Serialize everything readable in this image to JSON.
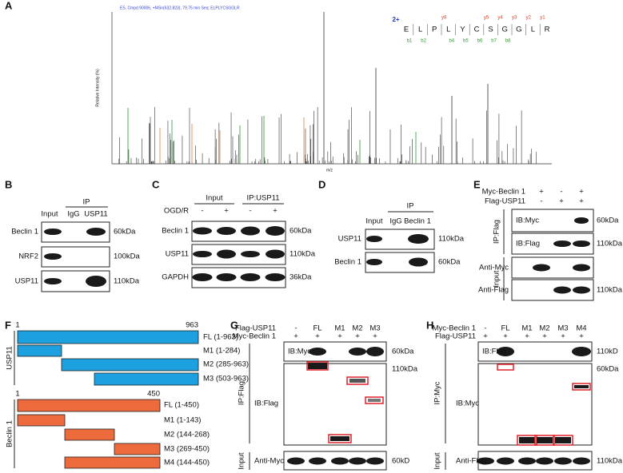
{
  "panel_a": {
    "label": "A",
    "header": "ES, Cmpd 90006, +MSn(632.823), 79.75 min   Seq: ELPLYCSGGLR",
    "y_axis": "Relative Intensity (%)",
    "x_axis": "m/z",
    "charge": "2+",
    "sequence": [
      "E",
      "L",
      "P",
      "L",
      "Y",
      "C",
      "S",
      "G",
      "G",
      "L",
      "R"
    ],
    "y_ions": [
      "y8",
      "y5",
      "y4",
      "y3",
      "y2",
      "y1"
    ],
    "b_ions": [
      "b1",
      "b2",
      "b4",
      "b5",
      "b6",
      "b7",
      "b8"
    ]
  },
  "panel_b": {
    "label": "B",
    "ip": "IP",
    "lanes": [
      "Input",
      "IgG",
      "USP11"
    ],
    "rows": [
      "Beclin 1",
      "NRF2",
      "USP11"
    ],
    "sizes": [
      "60kDa",
      "100kDa",
      "110kDa"
    ]
  },
  "panel_c": {
    "label": "C",
    "groups": [
      "Input",
      "IP:USP11"
    ],
    "treatment": "OGD/R",
    "signs": [
      "-",
      "+",
      "-",
      "+"
    ],
    "rows": [
      "Beclin 1",
      "USP11",
      "GAPDH"
    ],
    "sizes": [
      "60kDa",
      "110kDa",
      "36kDa"
    ]
  },
  "panel_d": {
    "label": "D",
    "ip": "IP",
    "lanes": [
      "Input",
      "IgG",
      "Beclin 1"
    ],
    "rows": [
      "USP11",
      "Beclin 1"
    ],
    "sizes": [
      "110kDa",
      "60kDa"
    ]
  },
  "panel_e": {
    "label": "E",
    "conditions": [
      {
        "name": "Myc-Beclin 1",
        "signs": [
          "+",
          "-",
          "+"
        ]
      },
      {
        "name": "Flag-USP11",
        "signs": [
          "-",
          "+",
          "+"
        ]
      }
    ],
    "ip": "IP:Flag",
    "ip_rows": [
      "IB:Myc",
      "IB:Flag"
    ],
    "ip_sizes": [
      "60kDa",
      "110kDa"
    ],
    "input": "Input",
    "input_rows": [
      "Anti-Myc",
      "Anti-Flag"
    ],
    "input_size": "110kDa"
  },
  "panel_f": {
    "label": "F",
    "usp11": {
      "name": "USP11",
      "start": "1",
      "end": "963",
      "constructs": [
        "FL (1-963)",
        "M1 (1-284)",
        "M2 (285-963)",
        "M3 (503-963)"
      ]
    },
    "beclin": {
      "name": "Beclin 1",
      "start": "1",
      "end": "450",
      "constructs": [
        "FL (1-450)",
        "M1 (1-143)",
        "M2 (144-268)",
        "M3 (269-450)",
        "M4 (144-450)"
      ]
    }
  },
  "panel_g": {
    "label": "G",
    "conditions": [
      {
        "name": "Flag-USP11",
        "signs": [
          "-",
          "FL",
          "M1",
          "M2",
          "M3"
        ]
      },
      {
        "name": "Myc-Beclin 1",
        "signs": [
          "+",
          "+",
          "+",
          "+",
          "+"
        ]
      }
    ],
    "ip": "IP:Flag",
    "ip_rows": [
      "IB:Myc",
      "IB:Flag"
    ],
    "ip_sizes": [
      "60kDa",
      "110kDa"
    ],
    "input": "Input",
    "input_row": "Anti-Myc",
    "input_size": "60kD"
  },
  "panel_h": {
    "label": "H",
    "conditions": [
      {
        "name": "Myc-Beclin 1",
        "signs": [
          "-",
          "FL",
          "M1",
          "M2",
          "M3",
          "M4"
        ]
      },
      {
        "name": "Flag-USP11",
        "signs": [
          "+",
          "+",
          "+",
          "+",
          "+",
          "+"
        ]
      }
    ],
    "ip": "IP:Myc",
    "ip_rows": [
      "IB:Flag",
      "IB:Myc"
    ],
    "ip_sizes": [
      "110kD",
      "60kDa"
    ],
    "input": "Input",
    "input_row": "Anti-Flag",
    "input_size": "110kDa"
  }
}
